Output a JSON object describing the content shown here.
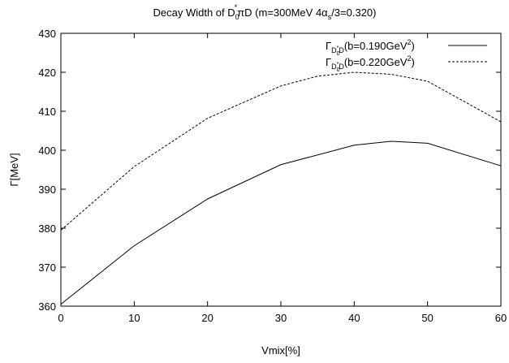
{
  "chart_data": {
    "type": "line",
    "title": {
      "prefix": "Decay Width of D",
      "sub": "0",
      "sup": "*",
      "rest": "πD (m=300MeV   4α",
      "sub2": "s",
      "tail": "/3=0.320)"
    },
    "xlabel": "Vmix[%]",
    "ylabel": "Γ[MeV]",
    "xlim": [
      0,
      60
    ],
    "ylim": [
      360,
      430
    ],
    "xticks": [
      0,
      10,
      20,
      30,
      40,
      50,
      60
    ],
    "yticks": [
      360,
      370,
      380,
      390,
      400,
      410,
      420,
      430
    ],
    "grid": false,
    "legend_position": "top-right",
    "series": [
      {
        "legend": {
          "gamma": "Γ",
          "sub": "D",
          "subsub": "0",
          "subsup": "*",
          "subtail": "D",
          "text": "(b=0.190GeV",
          "sup": "2",
          "close": ")"
        },
        "style": "solid",
        "x": [
          0,
          10,
          20,
          30,
          40,
          45,
          50,
          60
        ],
        "values": [
          360.5,
          375.5,
          387.5,
          396.3,
          401.3,
          402.3,
          401.8,
          396.0
        ]
      },
      {
        "legend": {
          "gamma": "Γ",
          "sub": "D",
          "subsub": "0",
          "subsup": "*",
          "subtail": "D",
          "text": "(b=0.220GeV",
          "sup": "2",
          "close": ")"
        },
        "style": "dashed",
        "x": [
          0,
          10,
          20,
          30,
          35,
          40,
          45,
          50,
          60
        ],
        "values": [
          379.5,
          395.8,
          408.2,
          416.5,
          419.0,
          420.0,
          419.5,
          417.7,
          407.3
        ]
      }
    ]
  }
}
